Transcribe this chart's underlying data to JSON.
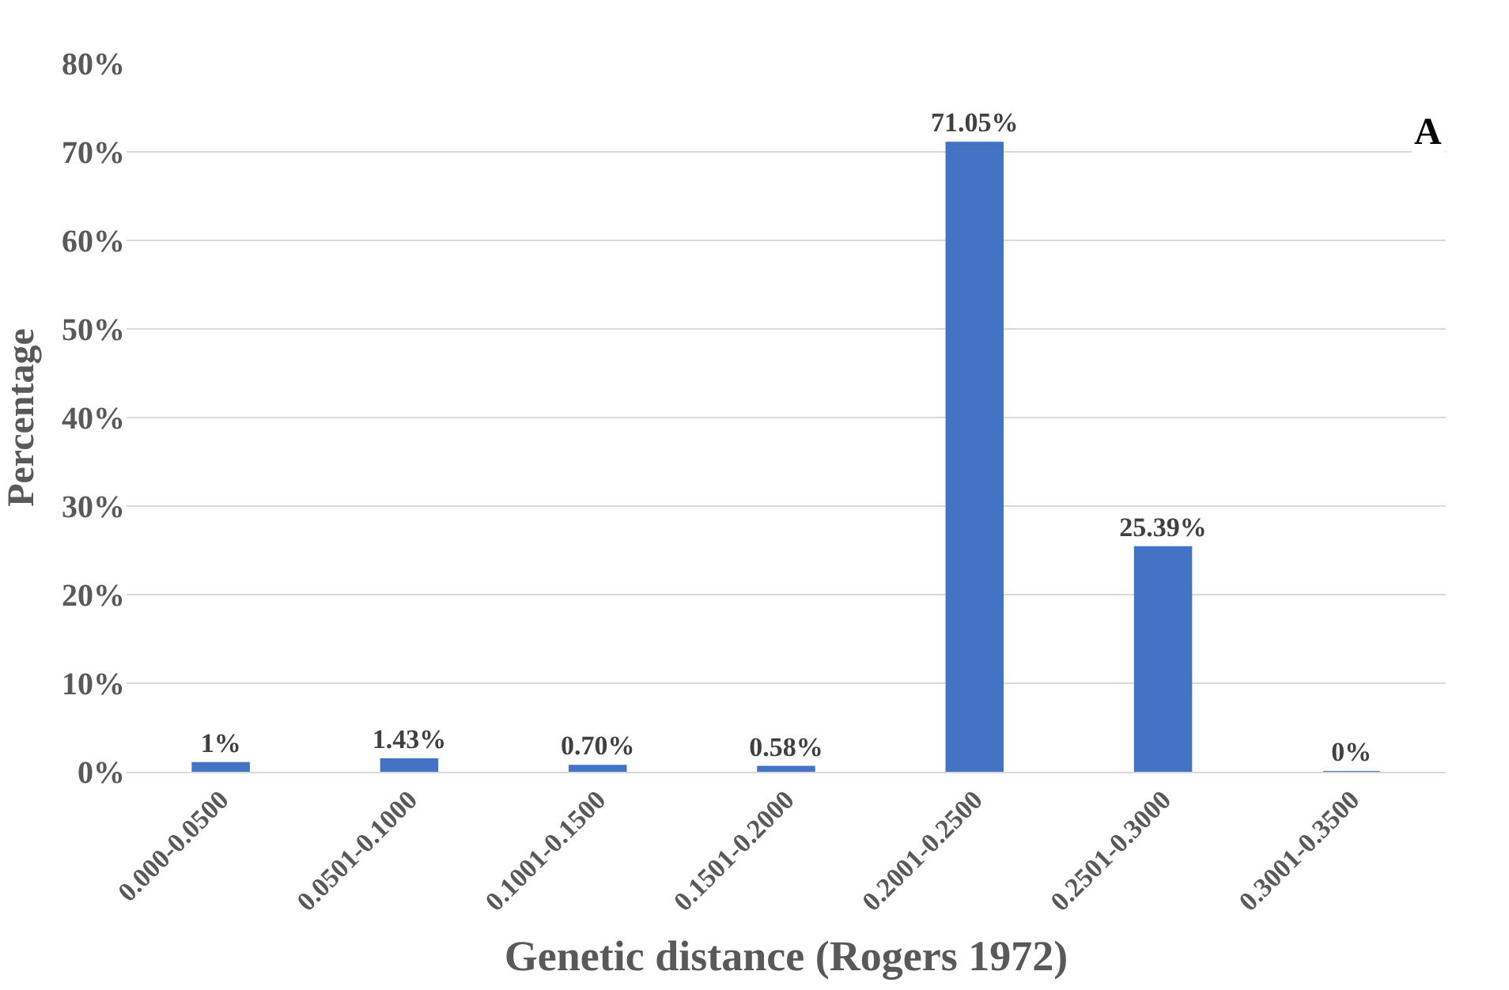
{
  "chart_data": {
    "type": "bar",
    "xlabel": "Genetic distance (Rogers 1972)",
    "ylabel": "Percentage",
    "annotations": [
      "A"
    ],
    "categories": [
      "0.000-0.0500",
      "0.0501-0.1000",
      "0.1001-0.1500",
      "0.1501-0.2000",
      "0.2001-0.2500",
      "0.2501-0.3000",
      "0.3001-0.3500"
    ],
    "values": [
      1,
      1.43,
      0.7,
      0.58,
      71.05,
      25.39,
      0
    ],
    "value_labels": [
      "1%",
      "1.43%",
      "0.70%",
      "0.58%",
      "71.05%",
      "25.39%",
      "0%"
    ],
    "color": "#4472c4",
    "ylim": [
      0,
      80
    ],
    "yticks": [
      {
        "value": 0,
        "label": "0%"
      },
      {
        "value": 10,
        "label": "10%"
      },
      {
        "value": 20,
        "label": "20%"
      },
      {
        "value": 30,
        "label": "30%"
      },
      {
        "value": 40,
        "label": "40%"
      },
      {
        "value": 50,
        "label": "50%"
      },
      {
        "value": 60,
        "label": "60%"
      },
      {
        "value": 70,
        "label": "70%"
      },
      {
        "value": 80,
        "label": "80%"
      }
    ],
    "grid": "y",
    "legend": false
  }
}
